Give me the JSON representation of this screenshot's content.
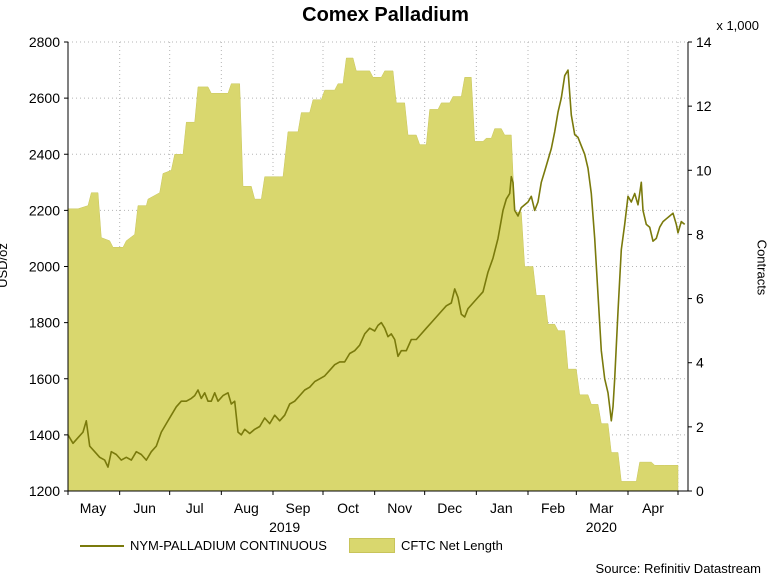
{
  "chart_data": {
    "type": "line+area",
    "title": "Comex Palladium",
    "ylabel_left": "USD/oz",
    "ylabel_right": "Contracts",
    "right_multiplier": "x 1,000",
    "ylim_left": [
      1200,
      2800
    ],
    "yticks_left": [
      1200,
      1400,
      1600,
      1800,
      2000,
      2200,
      2400,
      2600,
      2800
    ],
    "ylim_right": [
      0,
      14
    ],
    "yticks_right": [
      0,
      2,
      4,
      6,
      8,
      10,
      12,
      14
    ],
    "xlim_days": [
      0,
      372
    ],
    "month_labels": [
      {
        "label": "May",
        "day": 15
      },
      {
        "label": "Jun",
        "day": 46
      },
      {
        "label": "Jul",
        "day": 76
      },
      {
        "label": "Aug",
        "day": 107
      },
      {
        "label": "Sep",
        "day": 138
      },
      {
        "label": "Oct",
        "day": 168
      },
      {
        "label": "Nov",
        "day": 199
      },
      {
        "label": "Dec",
        "day": 229
      },
      {
        "label": "Jan",
        "day": 260
      },
      {
        "label": "Feb",
        "day": 291
      },
      {
        "label": "Mar",
        "day": 320
      },
      {
        "label": "Apr",
        "day": 351
      }
    ],
    "year_labels": [
      {
        "label": "2019",
        "day": 130
      },
      {
        "label": "2020",
        "day": 320
      }
    ],
    "series": [
      {
        "name": "CFTC Net Length",
        "kind": "area",
        "axis": "right",
        "color": "#d9d76e",
        "points": [
          [
            0,
            8.8
          ],
          [
            6,
            8.8
          ],
          [
            12,
            8.9
          ],
          [
            14,
            9.3
          ],
          [
            18,
            9.3
          ],
          [
            20,
            7.9
          ],
          [
            25,
            7.8
          ],
          [
            27,
            7.6
          ],
          [
            33,
            7.6
          ],
          [
            35,
            7.8
          ],
          [
            40,
            8.0
          ],
          [
            42,
            8.9
          ],
          [
            47,
            8.9
          ],
          [
            48,
            9.1
          ],
          [
            55,
            9.3
          ],
          [
            57,
            9.9
          ],
          [
            62,
            10.0
          ],
          [
            64,
            10.5
          ],
          [
            69,
            10.5
          ],
          [
            71,
            11.5
          ],
          [
            76,
            11.5
          ],
          [
            78,
            12.6
          ],
          [
            84,
            12.6
          ],
          [
            86,
            12.4
          ],
          [
            96,
            12.4
          ],
          [
            98,
            12.7
          ],
          [
            103,
            12.7
          ],
          [
            105,
            9.5
          ],
          [
            110,
            9.5
          ],
          [
            112,
            9.1
          ],
          [
            116,
            9.1
          ],
          [
            118,
            9.8
          ],
          [
            127,
            9.8
          ],
          [
            129,
            9.8
          ],
          [
            132,
            11.2
          ],
          [
            138,
            11.2
          ],
          [
            140,
            11.8
          ],
          [
            145,
            11.8
          ],
          [
            147,
            12.2
          ],
          [
            152,
            12.2
          ],
          [
            154,
            12.5
          ],
          [
            160,
            12.5
          ],
          [
            162,
            12.7
          ],
          [
            165,
            12.7
          ],
          [
            167,
            13.5
          ],
          [
            171,
            13.5
          ],
          [
            173,
            13.1
          ],
          [
            181,
            13.1
          ],
          [
            183,
            12.9
          ],
          [
            188,
            12.9
          ],
          [
            190,
            13.1
          ],
          [
            195,
            13.1
          ],
          [
            197,
            12.1
          ],
          [
            202,
            12.1
          ],
          [
            204,
            11.1
          ],
          [
            209,
            11.1
          ],
          [
            211,
            10.8
          ],
          [
            215,
            10.8
          ],
          [
            217,
            11.9
          ],
          [
            222,
            11.9
          ],
          [
            224,
            12.1
          ],
          [
            229,
            12.1
          ],
          [
            231,
            12.3
          ],
          [
            236,
            12.3
          ],
          [
            238,
            12.9
          ],
          [
            242,
            12.9
          ],
          [
            244,
            10.9
          ],
          [
            249,
            10.9
          ],
          [
            251,
            11.0
          ],
          [
            254,
            11.0
          ],
          [
            256,
            11.3
          ],
          [
            260,
            11.3
          ],
          [
            262,
            11.1
          ],
          [
            266,
            11.1
          ],
          [
            268,
            8.7
          ],
          [
            272,
            8.7
          ],
          [
            274,
            7.0
          ],
          [
            279,
            7.0
          ],
          [
            281,
            6.1
          ],
          [
            286,
            6.1
          ],
          [
            288,
            5.2
          ],
          [
            292,
            5.2
          ],
          [
            294,
            5.0
          ],
          [
            298,
            5.0
          ],
          [
            300,
            3.8
          ],
          [
            305,
            3.8
          ],
          [
            307,
            3.0
          ],
          [
            312,
            3.0
          ],
          [
            314,
            2.7
          ],
          [
            318,
            2.7
          ],
          [
            320,
            2.1
          ],
          [
            324,
            2.1
          ],
          [
            326,
            1.2
          ],
          [
            330,
            1.2
          ],
          [
            332,
            0.3
          ],
          [
            341,
            0.3
          ],
          [
            343,
            0.9
          ],
          [
            350,
            0.9
          ],
          [
            352,
            0.8
          ],
          [
            358,
            0.8
          ],
          [
            360,
            0.8
          ],
          [
            366,
            0.8
          ]
        ]
      },
      {
        "name": "NYM-PALLADIUM CONTINUOUS",
        "kind": "line",
        "axis": "left",
        "color": "#7a7a0c",
        "points": [
          [
            0,
            1400
          ],
          [
            3,
            1370
          ],
          [
            6,
            1390
          ],
          [
            9,
            1410
          ],
          [
            11,
            1450
          ],
          [
            13,
            1360
          ],
          [
            16,
            1340
          ],
          [
            19,
            1320
          ],
          [
            22,
            1310
          ],
          [
            24,
            1285
          ],
          [
            26,
            1340
          ],
          [
            29,
            1330
          ],
          [
            32,
            1310
          ],
          [
            35,
            1320
          ],
          [
            38,
            1310
          ],
          [
            41,
            1340
          ],
          [
            44,
            1330
          ],
          [
            47,
            1310
          ],
          [
            50,
            1340
          ],
          [
            53,
            1360
          ],
          [
            56,
            1410
          ],
          [
            59,
            1440
          ],
          [
            62,
            1470
          ],
          [
            65,
            1500
          ],
          [
            68,
            1520
          ],
          [
            71,
            1520
          ],
          [
            74,
            1530
          ],
          [
            76,
            1540
          ],
          [
            78,
            1560
          ],
          [
            80,
            1530
          ],
          [
            82,
            1550
          ],
          [
            84,
            1520
          ],
          [
            86,
            1520
          ],
          [
            88,
            1550
          ],
          [
            90,
            1520
          ],
          [
            93,
            1540
          ],
          [
            96,
            1550
          ],
          [
            98,
            1510
          ],
          [
            100,
            1520
          ],
          [
            102,
            1410
          ],
          [
            104,
            1400
          ],
          [
            106,
            1420
          ],
          [
            109,
            1405
          ],
          [
            112,
            1420
          ],
          [
            115,
            1430
          ],
          [
            118,
            1460
          ],
          [
            121,
            1440
          ],
          [
            124,
            1470
          ],
          [
            127,
            1450
          ],
          [
            130,
            1470
          ],
          [
            133,
            1510
          ],
          [
            136,
            1520
          ],
          [
            139,
            1540
          ],
          [
            142,
            1560
          ],
          [
            145,
            1570
          ],
          [
            148,
            1590
          ],
          [
            151,
            1600
          ],
          [
            154,
            1610
          ],
          [
            157,
            1630
          ],
          [
            160,
            1650
          ],
          [
            163,
            1660
          ],
          [
            166,
            1660
          ],
          [
            169,
            1690
          ],
          [
            172,
            1700
          ],
          [
            175,
            1720
          ],
          [
            178,
            1760
          ],
          [
            181,
            1780
          ],
          [
            184,
            1770
          ],
          [
            186,
            1790
          ],
          [
            188,
            1800
          ],
          [
            190,
            1780
          ],
          [
            192,
            1750
          ],
          [
            194,
            1760
          ],
          [
            196,
            1740
          ],
          [
            198,
            1680
          ],
          [
            200,
            1700
          ],
          [
            203,
            1700
          ],
          [
            206,
            1740
          ],
          [
            209,
            1740
          ],
          [
            212,
            1760
          ],
          [
            215,
            1780
          ],
          [
            218,
            1800
          ],
          [
            221,
            1820
          ],
          [
            224,
            1840
          ],
          [
            227,
            1860
          ],
          [
            230,
            1870
          ],
          [
            232,
            1920
          ],
          [
            234,
            1890
          ],
          [
            236,
            1830
          ],
          [
            238,
            1820
          ],
          [
            240,
            1850
          ],
          [
            243,
            1870
          ],
          [
            246,
            1890
          ],
          [
            249,
            1910
          ],
          [
            252,
            1980
          ],
          [
            255,
            2030
          ],
          [
            258,
            2100
          ],
          [
            261,
            2200
          ],
          [
            263,
            2240
          ],
          [
            265,
            2260
          ],
          [
            266,
            2320
          ],
          [
            267,
            2300
          ],
          [
            268,
            2200
          ],
          [
            270,
            2180
          ],
          [
            272,
            2210
          ],
          [
            274,
            2220
          ],
          [
            276,
            2230
          ],
          [
            278,
            2250
          ],
          [
            280,
            2200
          ],
          [
            282,
            2230
          ],
          [
            284,
            2300
          ],
          [
            286,
            2340
          ],
          [
            288,
            2380
          ],
          [
            290,
            2420
          ],
          [
            292,
            2480
          ],
          [
            294,
            2550
          ],
          [
            296,
            2600
          ],
          [
            298,
            2680
          ],
          [
            300,
            2700
          ],
          [
            302,
            2540
          ],
          [
            304,
            2470
          ],
          [
            306,
            2460
          ],
          [
            308,
            2430
          ],
          [
            310,
            2400
          ],
          [
            312,
            2350
          ],
          [
            314,
            2260
          ],
          [
            316,
            2100
          ],
          [
            318,
            1900
          ],
          [
            320,
            1700
          ],
          [
            322,
            1600
          ],
          [
            324,
            1550
          ],
          [
            325,
            1500
          ],
          [
            326,
            1450
          ],
          [
            327,
            1500
          ],
          [
            328,
            1600
          ],
          [
            330,
            1840
          ],
          [
            332,
            2060
          ],
          [
            334,
            2150
          ],
          [
            336,
            2250
          ],
          [
            338,
            2230
          ],
          [
            340,
            2260
          ],
          [
            342,
            2220
          ],
          [
            343,
            2260
          ],
          [
            344,
            2300
          ],
          [
            345,
            2200
          ],
          [
            347,
            2150
          ],
          [
            349,
            2140
          ],
          [
            351,
            2090
          ],
          [
            353,
            2100
          ],
          [
            355,
            2140
          ],
          [
            357,
            2160
          ],
          [
            359,
            2170
          ],
          [
            361,
            2180
          ],
          [
            363,
            2190
          ],
          [
            365,
            2150
          ],
          [
            366,
            2120
          ],
          [
            368,
            2160
          ],
          [
            370,
            2150
          ]
        ]
      }
    ]
  },
  "legend": {
    "line_label": "NYM-PALLADIUM CONTINUOUS",
    "area_label": "CFTC Net Length"
  },
  "source": "Source: Refinitiv Datastream"
}
